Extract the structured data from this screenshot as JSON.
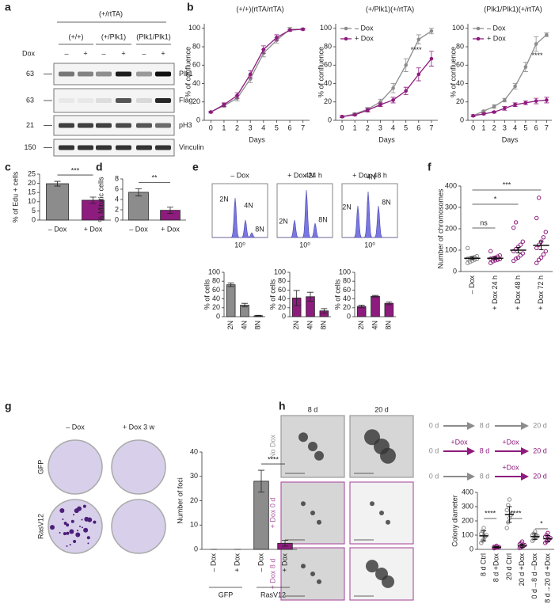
{
  "panel_labels": [
    "a",
    "b",
    "c",
    "d",
    "e",
    "f",
    "g",
    "h"
  ],
  "blot": {
    "genotype_group": "(+/rtTA)",
    "dox_label": "Dox",
    "genotypes": [
      "(+/+)",
      "(+/Plk1)",
      "(Plk1/Plk1)"
    ],
    "dox_states": [
      "–",
      "+",
      "–",
      "+",
      "–",
      "+"
    ],
    "rows": [
      {
        "mw": "63",
        "protein": "Plk1"
      },
      {
        "mw": "63",
        "protein": "Flag"
      },
      {
        "mw": "21",
        "protein": "pH3"
      },
      {
        "mw": "150",
        "protein": "Vinculin"
      }
    ]
  },
  "flow": {
    "titles": [
      "– Dox",
      "+ Dox 24 h",
      "+ Dox 48 h"
    ],
    "peaks": [
      "2N",
      "4N",
      "8N"
    ],
    "x_tick": "10⁰"
  },
  "plates": {
    "columns": [
      "– Dox",
      "+ Dox 3 w"
    ],
    "rows": [
      "GFP",
      "RasV12"
    ]
  },
  "colonies": {
    "columns": [
      "8 d",
      "20 d"
    ],
    "rows": [
      "No Dox",
      "+ Dox 0 d",
      "+ Dox 8 d"
    ],
    "scheme": {
      "days": [
        "0 d",
        "8 d",
        "20 d"
      ],
      "treatment": "+Dox"
    }
  },
  "chart_data": [
    {
      "type": "line",
      "title": "(+/+)(rtTA/rtTA)",
      "x_label": "Days",
      "y_label": "% of confluence",
      "x": [
        0,
        1,
        2,
        3,
        4,
        5,
        6,
        7
      ],
      "xlim": [
        -0.5,
        7.5
      ],
      "xticks": [
        0,
        1,
        2,
        3,
        4,
        5,
        6,
        7
      ],
      "ylim": [
        0,
        105
      ],
      "yticks": [
        0,
        20,
        40,
        60,
        80,
        100
      ],
      "legend": false,
      "series": [
        {
          "color": "#8c8c8c",
          "values": [
            9,
            16,
            24,
            45,
            73,
            87,
            99,
            99
          ],
          "errors": [
            1,
            2,
            3,
            4,
            4,
            3,
            2,
            1
          ]
        },
        {
          "color": "#8e1b7e",
          "values": [
            9,
            17,
            27,
            50,
            77,
            90,
            98,
            99
          ],
          "errors": [
            1,
            2,
            3,
            4,
            4,
            3,
            1,
            1
          ]
        }
      ]
    },
    {
      "type": "line",
      "title": "(+/Plk1)(+/rtTA)",
      "x_label": "Days",
      "y_label": "% of confluence",
      "x": [
        0,
        1,
        2,
        3,
        4,
        5,
        6,
        7
      ],
      "xlim": [
        -0.5,
        7.5
      ],
      "xticks": [
        0,
        1,
        2,
        3,
        4,
        5,
        6,
        7
      ],
      "ylim": [
        0,
        105
      ],
      "yticks": [
        0,
        20,
        40,
        60,
        80,
        100
      ],
      "legend": true,
      "annotation": "****",
      "series": [
        {
          "name": "– Dox",
          "color": "#8c8c8c",
          "values": [
            4,
            7,
            12,
            20,
            35,
            60,
            88,
            97
          ],
          "errors": [
            1,
            1,
            2,
            3,
            5,
            7,
            5,
            3
          ]
        },
        {
          "name": "+ Dox",
          "color": "#8e1b7e",
          "values": [
            4,
            6,
            11,
            17,
            22,
            32,
            50,
            67
          ],
          "errors": [
            1,
            1,
            2,
            2,
            3,
            4,
            7,
            8
          ]
        }
      ]
    },
    {
      "type": "line",
      "title": "(Plk1/Plk1)(+/rtTA)",
      "x_label": "Days",
      "y_label": "% of confluence",
      "x": [
        0,
        1,
        2,
        3,
        4,
        5,
        6,
        7
      ],
      "xlim": [
        -0.5,
        7.5
      ],
      "xticks": [
        0,
        1,
        2,
        3,
        4,
        5,
        6,
        7
      ],
      "ylim": [
        0,
        105
      ],
      "yticks": [
        0,
        20,
        40,
        60,
        80,
        100
      ],
      "legend": true,
      "annotation": "****",
      "series": [
        {
          "name": "– Dox",
          "color": "#8c8c8c",
          "values": [
            5,
            10,
            15,
            22,
            37,
            58,
            83,
            93
          ],
          "errors": [
            1,
            1,
            2,
            2,
            3,
            5,
            8,
            2
          ]
        },
        {
          "name": "+ Dox",
          "color": "#8e1b7e",
          "values": [
            5,
            7,
            9,
            13,
            17,
            19,
            21,
            22
          ],
          "errors": [
            1,
            1,
            1,
            2,
            2,
            2,
            3,
            3
          ]
        }
      ]
    },
    {
      "type": "bar",
      "y_label": "% of Edu + cells",
      "categories": [
        "– Dox",
        "+ Dox"
      ],
      "values": [
        19.8,
        10.8
      ],
      "errors": [
        1.3,
        1.7
      ],
      "colors": [
        "#8c8c8c",
        "#8e1b7e"
      ],
      "ylim": [
        0,
        25
      ],
      "yticks": [
        0,
        5,
        10,
        15,
        20,
        25
      ],
      "annotation": "***"
    },
    {
      "type": "bar",
      "y_label": "% Mitotic cells",
      "categories": [
        "– Dox",
        "+ Dox"
      ],
      "values": [
        5.4,
        1.9
      ],
      "errors": [
        0.7,
        0.6
      ],
      "colors": [
        "#8c8c8c",
        "#8e1b7e"
      ],
      "ylim": [
        0,
        8
      ],
      "yticks": [
        0,
        2,
        4,
        6,
        8
      ],
      "annotation": "**"
    },
    {
      "type": "bar",
      "y_label": "% of cells",
      "categories": [
        "2N",
        "4N",
        "8N"
      ],
      "values": [
        72,
        26,
        2
      ],
      "errors": [
        4,
        4,
        1
      ],
      "colors": [
        "#8c8c8c",
        "#8c8c8c",
        "#8c8c8c"
      ],
      "ylim": [
        0,
        100
      ],
      "yticks": [
        0,
        20,
        40,
        60,
        80,
        100
      ]
    },
    {
      "type": "bar",
      "y_label": "% of cells",
      "categories": [
        "2N",
        "4N",
        "8N"
      ],
      "values": [
        42,
        45,
        13
      ],
      "errors": [
        17,
        10,
        5
      ],
      "colors": [
        "#8e1b7e",
        "#8e1b7e",
        "#8e1b7e"
      ],
      "ylim": [
        0,
        100
      ],
      "yticks": [
        0,
        20,
        40,
        60,
        80,
        100
      ]
    },
    {
      "type": "bar",
      "y_label": "% of cells",
      "categories": [
        "2N",
        "4N",
        "8N"
      ],
      "values": [
        23,
        46,
        30
      ],
      "errors": [
        3,
        2,
        3
      ],
      "colors": [
        "#8e1b7e",
        "#8e1b7e",
        "#8e1b7e"
      ],
      "ylim": [
        0,
        100
      ],
      "yticks": [
        0,
        20,
        40,
        60,
        80,
        100
      ]
    },
    {
      "type": "dot",
      "y_label": "Number of chromosomes",
      "categories": [
        "– Dox",
        "+ Dox 24 h",
        "+ Dox 48 h",
        "+ Dox 72 h"
      ],
      "means": [
        62,
        62,
        100,
        122
      ],
      "errors": [
        6,
        6,
        13,
        20
      ],
      "points": [
        [
          40,
          45,
          50,
          55,
          58,
          60,
          62,
          65,
          68,
          72,
          110
        ],
        [
          40,
          48,
          52,
          55,
          58,
          60,
          62,
          65,
          70,
          75,
          95
        ],
        [
          50,
          60,
          65,
          75,
          85,
          95,
          105,
          115,
          125,
          140,
          205,
          230
        ],
        [
          40,
          55,
          65,
          80,
          95,
          110,
          125,
          140,
          160,
          185,
          250,
          345
        ]
      ],
      "colors": [
        "#8c8c8c",
        "#8e1b7e",
        "#8e1b7e",
        "#8e1b7e"
      ],
      "ylim": [
        0,
        400
      ],
      "yticks": [
        0,
        100,
        200,
        300,
        400
      ],
      "comparisons": [
        "ns",
        "*",
        "***"
      ]
    },
    {
      "type": "bar",
      "y_label": "Number of foci",
      "categories": [
        "– Dox",
        "+ Dox",
        "– Dox",
        "+ Dox"
      ],
      "groups": [
        "GFP",
        "RasV12"
      ],
      "values": [
        0,
        0,
        28,
        2.5
      ],
      "errors": [
        0,
        0,
        4.5,
        1.2
      ],
      "colors": [
        "#8c8c8c",
        "#8e1b7e",
        "#8c8c8c",
        "#8e1b7e"
      ],
      "ylim": [
        0,
        40
      ],
      "yticks": [
        0,
        10,
        20,
        30,
        40
      ],
      "annotation": "****"
    },
    {
      "type": "dot",
      "y_label": "Colony diameter",
      "categories": [
        "8 d Ctrl",
        "8 d +Dox",
        "20 d Ctrl",
        "20 d +Dox",
        "0 d→8 d –Dox",
        "8 d→20 d +Dox"
      ],
      "means": [
        95,
        15,
        245,
        25,
        90,
        75
      ],
      "errors": [
        35,
        5,
        55,
        12,
        20,
        22
      ],
      "points": [
        [
          45,
          60,
          75,
          90,
          100,
          110,
          130,
          150
        ],
        [
          8,
          10,
          12,
          14,
          16,
          18,
          20,
          25
        ],
        [
          150,
          190,
          220,
          240,
          255,
          275,
          310,
          350
        ],
        [
          10,
          15,
          20,
          25,
          30,
          35,
          45,
          55
        ],
        [
          60,
          70,
          80,
          88,
          92,
          100,
          110,
          125
        ],
        [
          45,
          55,
          65,
          72,
          80,
          88,
          100,
          115
        ]
      ],
      "colors": [
        "#8c8c8c",
        "#8e1b7e",
        "#8c8c8c",
        "#8e1b7e",
        "#8c8c8c",
        "#8e1b7e"
      ],
      "ylim": [
        0,
        400
      ],
      "yticks": [
        0,
        100,
        200,
        300,
        400
      ],
      "comparisons": [
        "****",
        "****",
        "*"
      ]
    }
  ]
}
